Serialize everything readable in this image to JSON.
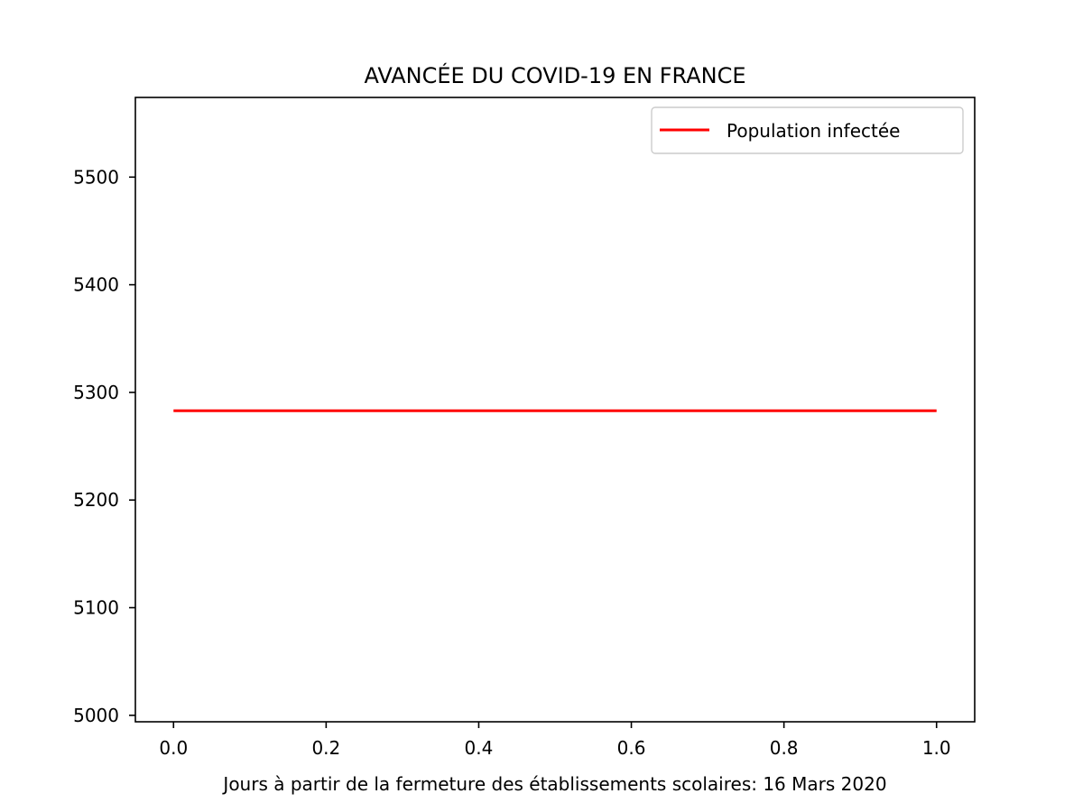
{
  "chart_data": {
    "type": "line",
    "title": "AVANCÉE DU COVID-19 EN FRANCE",
    "xlabel": "Jours à partir de la fermeture des établissements scolaires: 16 Mars 2020",
    "ylabel": "",
    "xlim": [
      -0.05,
      1.05
    ],
    "ylim": [
      4994,
      5574
    ],
    "x_ticks": [
      0.0,
      0.2,
      0.4,
      0.6,
      0.8,
      1.0
    ],
    "x_tick_labels": [
      "0.0",
      "0.2",
      "0.4",
      "0.6",
      "0.8",
      "1.0"
    ],
    "y_ticks": [
      5000,
      5100,
      5200,
      5300,
      5400,
      5500
    ],
    "y_tick_labels": [
      "5000",
      "5100",
      "5200",
      "5300",
      "5400",
      "5500"
    ],
    "grid": false,
    "legend_position": "top-right",
    "series": [
      {
        "name": "Population infectée",
        "color": "#ff0000",
        "x": [
          0,
          1
        ],
        "y": [
          5283,
          5283
        ]
      }
    ]
  }
}
